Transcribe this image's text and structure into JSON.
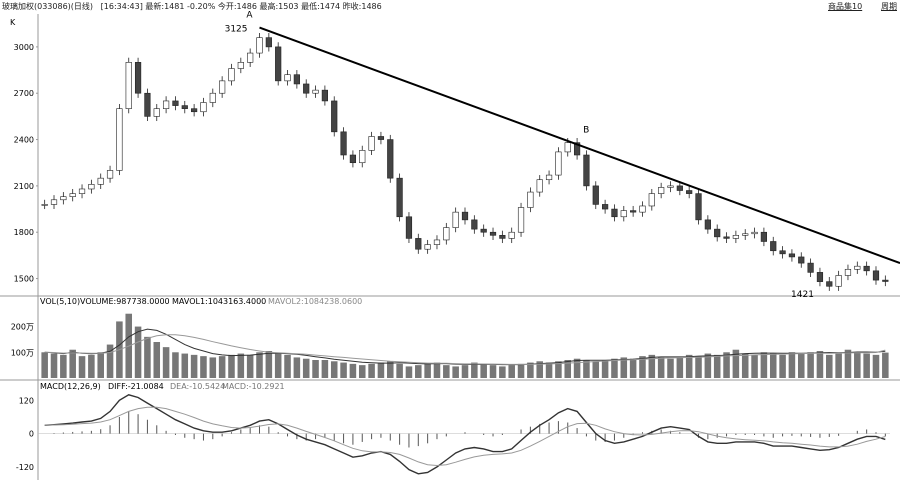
{
  "header": {
    "stock": "玻璃加权(033086)(日线)",
    "time": "[16:34:43]",
    "latest": "最新:1481",
    "change": "-0.20%",
    "open": "今开:1486",
    "high": "最高:1503",
    "low": "最低:1474",
    "close": "昨收:1486",
    "link_goods": "商品集10",
    "link_cycle": "周期"
  },
  "colors": {
    "line": "#222222",
    "candle_up_fill": "#ffffff",
    "candle_down_fill": "#444444",
    "vol_bar": "#777777",
    "ma_fast": "#333333",
    "ma_slow": "#999999"
  },
  "chart_data": [
    {
      "type": "line",
      "panel": "price",
      "title": "K",
      "ylim": [
        1400,
        3200
      ],
      "yticks": [
        "3000",
        "2700",
        "2400",
        "2100",
        "1800",
        "1500"
      ],
      "series": [
        {
          "values": [
            1980,
            2010,
            2030,
            2050,
            2080,
            2110,
            2150,
            2200,
            2600,
            2900,
            2700,
            2550,
            2600,
            2650,
            2620,
            2600,
            2580,
            2640,
            2700,
            2780,
            2860,
            2900,
            2960,
            3060,
            3000,
            2780,
            2820,
            2760,
            2700,
            2720,
            2650,
            2450,
            2300,
            2250,
            2330,
            2420,
            2400,
            2150,
            1900,
            1760,
            1690,
            1720,
            1750,
            1830,
            1930,
            1880,
            1820,
            1800,
            1780,
            1760,
            1800,
            1960,
            2060,
            2140,
            2170,
            2320,
            2380,
            2300,
            2100,
            1980,
            1950,
            1900,
            1940,
            1930,
            1970,
            2050,
            2090,
            2100,
            2070,
            2050,
            1880,
            1820,
            1770,
            1760,
            1780,
            1790,
            1800,
            1740,
            1680,
            1660,
            1640,
            1600,
            1540,
            1480,
            1450,
            1520,
            1560,
            1580,
            1550,
            1490,
            1481
          ]
        }
      ],
      "annotations": [
        {
          "label": "A",
          "x": 23,
          "y": 3125
        },
        {
          "label": "3125",
          "x": 23,
          "y": 3125
        },
        {
          "label": "B",
          "x": 57,
          "y": 2420
        },
        {
          "label": "1421",
          "x": 83,
          "y": 1421
        }
      ],
      "trendline": {
        "from": [
          23,
          3125
        ],
        "to": [
          90,
          1600
        ]
      }
    },
    {
      "type": "bar",
      "panel": "volume",
      "title": "VOL(5,10)",
      "legend": [
        "VOLUME:987738.0000",
        "MAVOL1:1043163.4000",
        "MAVOL2:1084238.0600"
      ],
      "yticks": [
        "200万",
        "100万"
      ],
      "ylim": [
        0,
        2800000
      ],
      "values": [
        1000000,
        950000,
        900000,
        1100000,
        850000,
        900000,
        1000000,
        1300000,
        2200000,
        2500000,
        2000000,
        1600000,
        1400000,
        1200000,
        1000000,
        950000,
        900000,
        850000,
        800000,
        850000,
        900000,
        950000,
        900000,
        1000000,
        1050000,
        950000,
        900000,
        800000,
        750000,
        700000,
        700000,
        650000,
        600000,
        550000,
        500000,
        550000,
        600000,
        650000,
        550000,
        450000,
        500000,
        550000,
        600000,
        500000,
        450000,
        500000,
        600000,
        550000,
        500000,
        450000,
        500000,
        550000,
        600000,
        650000,
        600000,
        650000,
        700000,
        750000,
        700000,
        650000,
        700000,
        750000,
        800000,
        750000,
        850000,
        900000,
        800000,
        750000,
        800000,
        900000,
        850000,
        950000,
        900000,
        1000000,
        1100000,
        950000,
        900000,
        1000000,
        950000,
        900000,
        1000000,
        950000,
        1000000,
        1050000,
        900000,
        950000,
        1100000,
        1000000,
        950000,
        900000,
        987738
      ],
      "series": [
        {
          "name": "MAVOL1",
          "values": [
            1000000,
            980000,
            950000,
            1000000,
            960000,
            940000,
            960000,
            1040000,
            1280000,
            1600000,
            1800000,
            1900000,
            1850000,
            1700000,
            1500000,
            1300000,
            1150000,
            1050000,
            950000,
            900000,
            870000,
            880000,
            890000,
            920000,
            960000,
            960000,
            950000,
            920000,
            880000,
            830000,
            780000,
            730000,
            690000,
            650000,
            610000,
            590000,
            580000,
            580000,
            590000,
            580000,
            560000,
            550000,
            560000,
            560000,
            540000,
            530000,
            530000,
            530000,
            530000,
            520000,
            520000,
            520000,
            540000,
            560000,
            580000,
            600000,
            640000,
            680000,
            690000,
            690000,
            690000,
            700000,
            720000,
            730000,
            760000,
            800000,
            820000,
            820000,
            820000,
            830000,
            850000,
            860000,
            870000,
            890000,
            920000,
            950000,
            960000,
            970000,
            970000,
            960000,
            960000,
            960000,
            970000,
            980000,
            990000,
            980000,
            990000,
            1010000,
            1010000,
            1000000,
            1043163
          ]
        },
        {
          "name": "MAVOL2",
          "values": [
            1000000,
            990000,
            970000,
            980000,
            970000,
            960000,
            960000,
            990000,
            1100000,
            1240000,
            1400000,
            1540000,
            1640000,
            1680000,
            1680000,
            1640000,
            1580000,
            1500000,
            1410000,
            1330000,
            1250000,
            1180000,
            1110000,
            1050000,
            1000000,
            980000,
            960000,
            940000,
            920000,
            890000,
            860000,
            830000,
            800000,
            770000,
            740000,
            710000,
            680000,
            650000,
            630000,
            610000,
            590000,
            580000,
            570000,
            570000,
            560000,
            550000,
            550000,
            545000,
            540000,
            535000,
            530000,
            530000,
            530000,
            540000,
            550000,
            560000,
            580000,
            600000,
            620000,
            640000,
            660000,
            680000,
            700000,
            710000,
            730000,
            750000,
            770000,
            780000,
            790000,
            800000,
            810000,
            820000,
            840000,
            860000,
            870000,
            880000,
            900000,
            910000,
            920000,
            930000,
            940000,
            950000,
            955000,
            960000,
            965000,
            970000,
            975000,
            980000,
            985000,
            990000,
            1084238
          ]
        }
      ]
    },
    {
      "type": "bar",
      "panel": "macd",
      "title": "MACD(12,26,9)",
      "legend": [
        "DIFF:-21.0084",
        "DEA:-10.5424",
        "MACD:-10.2921"
      ],
      "yticks": [
        "120",
        "0",
        "-120"
      ],
      "ylim": [
        -160,
        150
      ],
      "values": [
        0,
        2,
        4,
        6,
        8,
        10,
        16,
        30,
        60,
        80,
        70,
        50,
        30,
        10,
        -5,
        -15,
        -20,
        -25,
        -20,
        -10,
        5,
        15,
        20,
        30,
        25,
        5,
        -10,
        -20,
        -25,
        -20,
        -15,
        -25,
        -35,
        -40,
        -30,
        -20,
        -15,
        -25,
        -40,
        -50,
        -45,
        -35,
        -20,
        -10,
        0,
        5,
        0,
        -5,
        -10,
        -5,
        0,
        15,
        25,
        35,
        40,
        45,
        40,
        20,
        -10,
        -25,
        -30,
        -25,
        -15,
        -5,
        5,
        10,
        15,
        10,
        5,
        0,
        -15,
        -20,
        -15,
        -10,
        -5,
        -5,
        -5,
        -10,
        -15,
        -10,
        -8,
        -10,
        -12,
        -15,
        -12,
        -8,
        0,
        10,
        15,
        5,
        -10
      ],
      "series": [
        {
          "name": "DIFF",
          "values": [
            30,
            32,
            35,
            38,
            42,
            45,
            55,
            80,
            120,
            140,
            130,
            110,
            90,
            70,
            50,
            35,
            20,
            10,
            5,
            5,
            10,
            20,
            30,
            45,
            50,
            35,
            15,
            -5,
            -20,
            -30,
            -40,
            -55,
            -70,
            -85,
            -80,
            -70,
            -65,
            -75,
            -100,
            -130,
            -145,
            -140,
            -120,
            -95,
            -70,
            -55,
            -50,
            -55,
            -65,
            -65,
            -55,
            -25,
            5,
            30,
            50,
            75,
            90,
            80,
            40,
            0,
            -25,
            -35,
            -30,
            -20,
            -10,
            5,
            20,
            25,
            20,
            15,
            -10,
            -30,
            -35,
            -35,
            -30,
            -30,
            -30,
            -35,
            -45,
            -45,
            -45,
            -50,
            -55,
            -60,
            -58,
            -50,
            -35,
            -20,
            -10,
            -10,
            -21.0084
          ]
        },
        {
          "name": "DEA",
          "values": [
            30,
            31,
            32,
            34,
            36,
            38,
            42,
            50,
            65,
            80,
            90,
            95,
            95,
            90,
            80,
            70,
            58,
            45,
            35,
            28,
            22,
            20,
            22,
            27,
            33,
            35,
            30,
            20,
            8,
            -3,
            -14,
            -26,
            -40,
            -53,
            -62,
            -66,
            -66,
            -68,
            -75,
            -88,
            -102,
            -112,
            -115,
            -112,
            -103,
            -93,
            -84,
            -78,
            -75,
            -73,
            -70,
            -60,
            -45,
            -28,
            -10,
            8,
            25,
            36,
            37,
            30,
            17,
            7,
            0,
            -4,
            -5,
            -3,
            2,
            7,
            10,
            11,
            7,
            -1,
            -9,
            -15,
            -19,
            -22,
            -24,
            -26,
            -30,
            -33,
            -35,
            -38,
            -41,
            -45,
            -48,
            -48,
            -45,
            -38,
            -28,
            -20,
            -10.5424
          ]
        }
      ]
    }
  ]
}
